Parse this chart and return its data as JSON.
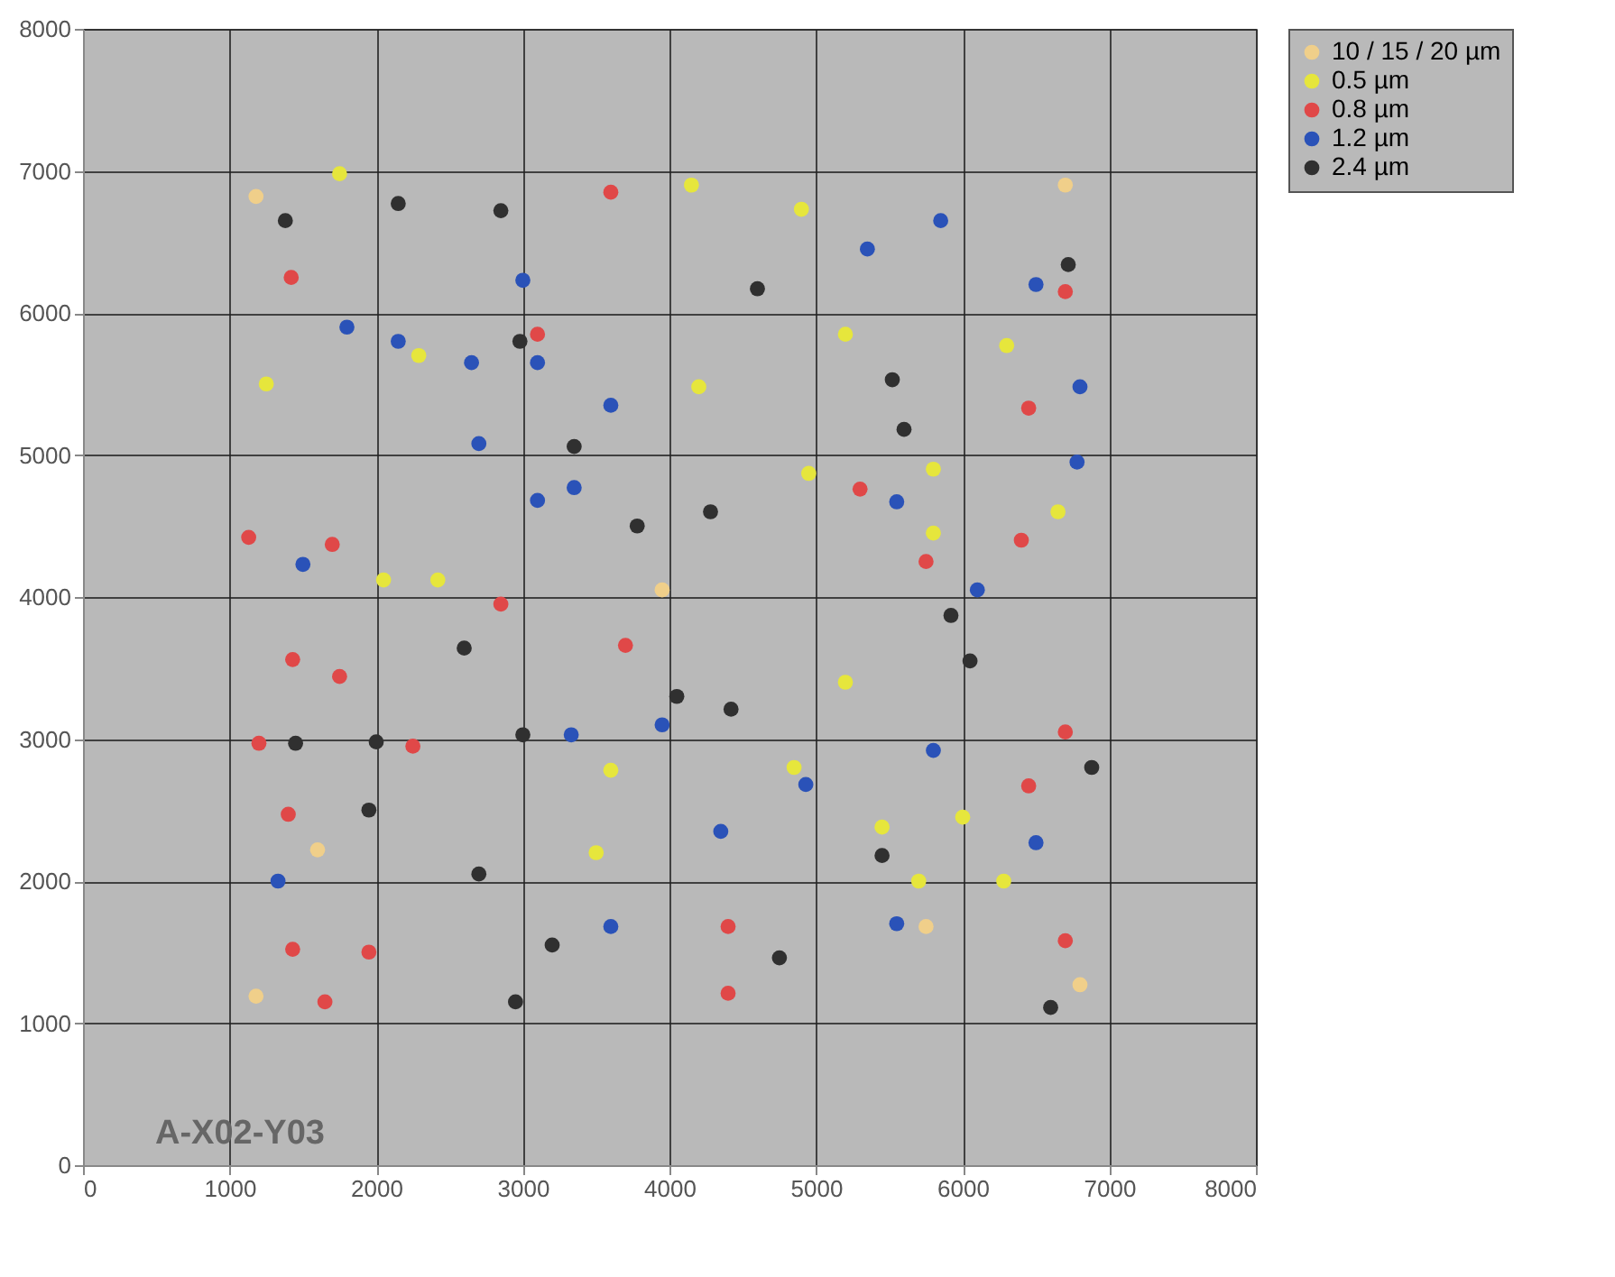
{
  "chart_data": {
    "type": "scatter",
    "xlim": [
      0,
      8000
    ],
    "ylim": [
      0,
      8000
    ],
    "xticks": [
      0,
      1000,
      2000,
      3000,
      4000,
      5000,
      6000,
      7000,
      8000
    ],
    "yticks": [
      0,
      1000,
      2000,
      3000,
      4000,
      5000,
      6000,
      7000,
      8000
    ],
    "grid": true,
    "legend": "top right",
    "marker": "circle",
    "annotations": [
      "A-X02-Y03"
    ],
    "series": [
      {
        "name": "10 / 15 / 20 µm",
        "color": "#f0cf8a",
        "x": [
          3950,
          1600,
          5750,
          6700,
          6800,
          1180,
          1180
        ],
        "values": [
          4050,
          2220,
          1680,
          6900,
          1270,
          6820,
          1190
        ]
      },
      {
        "name": "0.5 µm",
        "color": "#e6e63c",
        "x": [
          1750,
          1250,
          2290,
          4150,
          4900,
          4200,
          5200,
          6300,
          4950,
          5800,
          6650,
          2050,
          2420,
          5800,
          5200,
          3600,
          3500,
          4850,
          5450,
          5700,
          6000,
          6280
        ],
        "values": [
          6980,
          5500,
          5700,
          6900,
          6730,
          5480,
          5850,
          5770,
          4870,
          4900,
          4600,
          4120,
          4120,
          4450,
          3400,
          2780,
          2200,
          2800,
          2380,
          2000,
          2450,
          2000
        ]
      },
      {
        "name": "0.8 µm",
        "color": "#e04848",
        "x": [
          3600,
          1420,
          3100,
          5300,
          6450,
          6700,
          6400,
          5750,
          1130,
          1700,
          2850,
          3700,
          1430,
          1750,
          1200,
          2250,
          1400,
          6700,
          6450,
          4400,
          4400,
          6700,
          1430,
          1650,
          1950
        ],
        "values": [
          6850,
          6250,
          5850,
          4760,
          5330,
          6150,
          4400,
          4250,
          4420,
          4370,
          3950,
          3660,
          3560,
          3440,
          2970,
          2950,
          2470,
          3050,
          2670,
          1680,
          1210,
          1580,
          1520,
          1150,
          1500
        ]
      },
      {
        "name": "1.2 µm",
        "color": "#2a52b8",
        "x": [
          1800,
          2150,
          2650,
          3000,
          3100,
          3600,
          2700,
          3100,
          3350,
          1500,
          5350,
          5850,
          6500,
          6800,
          6780,
          5550,
          6100,
          3330,
          3950,
          4930,
          5800,
          4350,
          1330,
          6500,
          3600,
          5550
        ],
        "values": [
          5900,
          5800,
          5650,
          6230,
          5650,
          5350,
          5080,
          4680,
          4770,
          4230,
          6450,
          6650,
          6200,
          5480,
          4950,
          4670,
          4050,
          3030,
          3100,
          2680,
          2920,
          2350,
          2000,
          2270,
          1680,
          1700
        ]
      },
      {
        "name": "2.4 µm",
        "color": "#303030",
        "x": [
          1380,
          2150,
          2850,
          2980,
          3350,
          3780,
          4280,
          4600,
          5520,
          5600,
          6720,
          5920,
          6050,
          6880,
          2600,
          4050,
          4420,
          3000,
          1450,
          2000,
          1950,
          2700,
          3200,
          2950,
          4750,
          5450,
          6600
        ],
        "values": [
          6650,
          6770,
          6720,
          5800,
          5060,
          4500,
          4600,
          6170,
          5530,
          5180,
          6340,
          3870,
          3550,
          2800,
          3640,
          3300,
          3210,
          3030,
          2970,
          2980,
          2500,
          2050,
          1550,
          1150,
          1460,
          2180,
          1110
        ]
      }
    ]
  }
}
